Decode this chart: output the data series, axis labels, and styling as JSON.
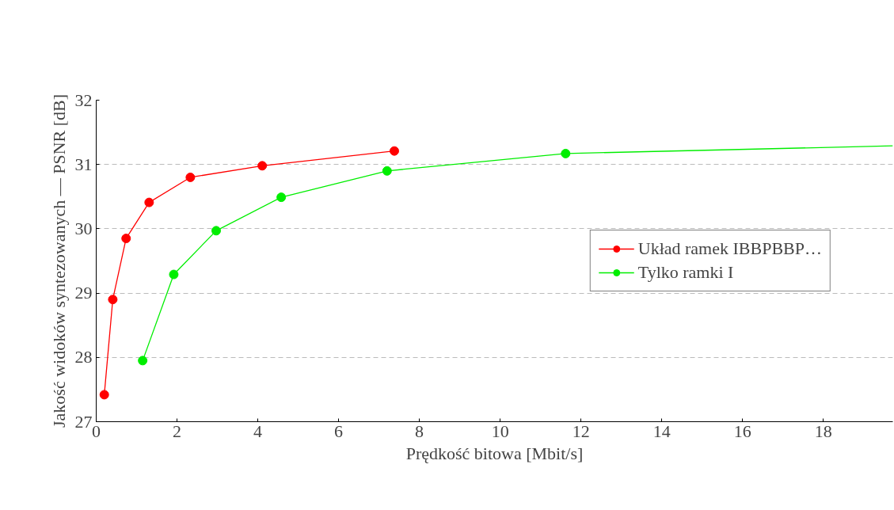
{
  "chart_data": {
    "type": "line",
    "xlabel": "Prędkość bitowa [Mbit/s]",
    "ylabel": "Jakość widoków syntezowanych — PSNR [dB]",
    "xlim": [
      0,
      19.72
    ],
    "ylim": [
      27,
      32
    ],
    "xticks": [
      0,
      2,
      4,
      6,
      8,
      10,
      12,
      14,
      16,
      18
    ],
    "yticks": [
      27,
      28,
      29,
      30,
      31,
      32
    ],
    "grid": "y",
    "legend": "right",
    "marker": "circle",
    "line_style": "solid",
    "series": [
      {
        "name": "Układ ramek IBBPBBP…",
        "color": "#ff0000",
        "x": [
          0.2,
          0.41,
          0.74,
          1.31,
          2.33,
          4.11,
          7.38
        ],
        "values": [
          27.42,
          28.9,
          29.85,
          30.41,
          30.8,
          30.98,
          31.21
        ]
      },
      {
        "name": "Tylko ramki I",
        "color": "#00ee00",
        "x": [
          1.15,
          1.92,
          2.97,
          4.58,
          7.2,
          11.62
        ],
        "values": [
          27.95,
          29.29,
          29.97,
          30.49,
          30.9,
          31.17
        ]
      },
      {
        "color": "#00ee00",
        "marker": "none",
        "x": [
          11.62,
          19.72
        ],
        "values": [
          31.17,
          31.29
        ]
      }
    ]
  }
}
